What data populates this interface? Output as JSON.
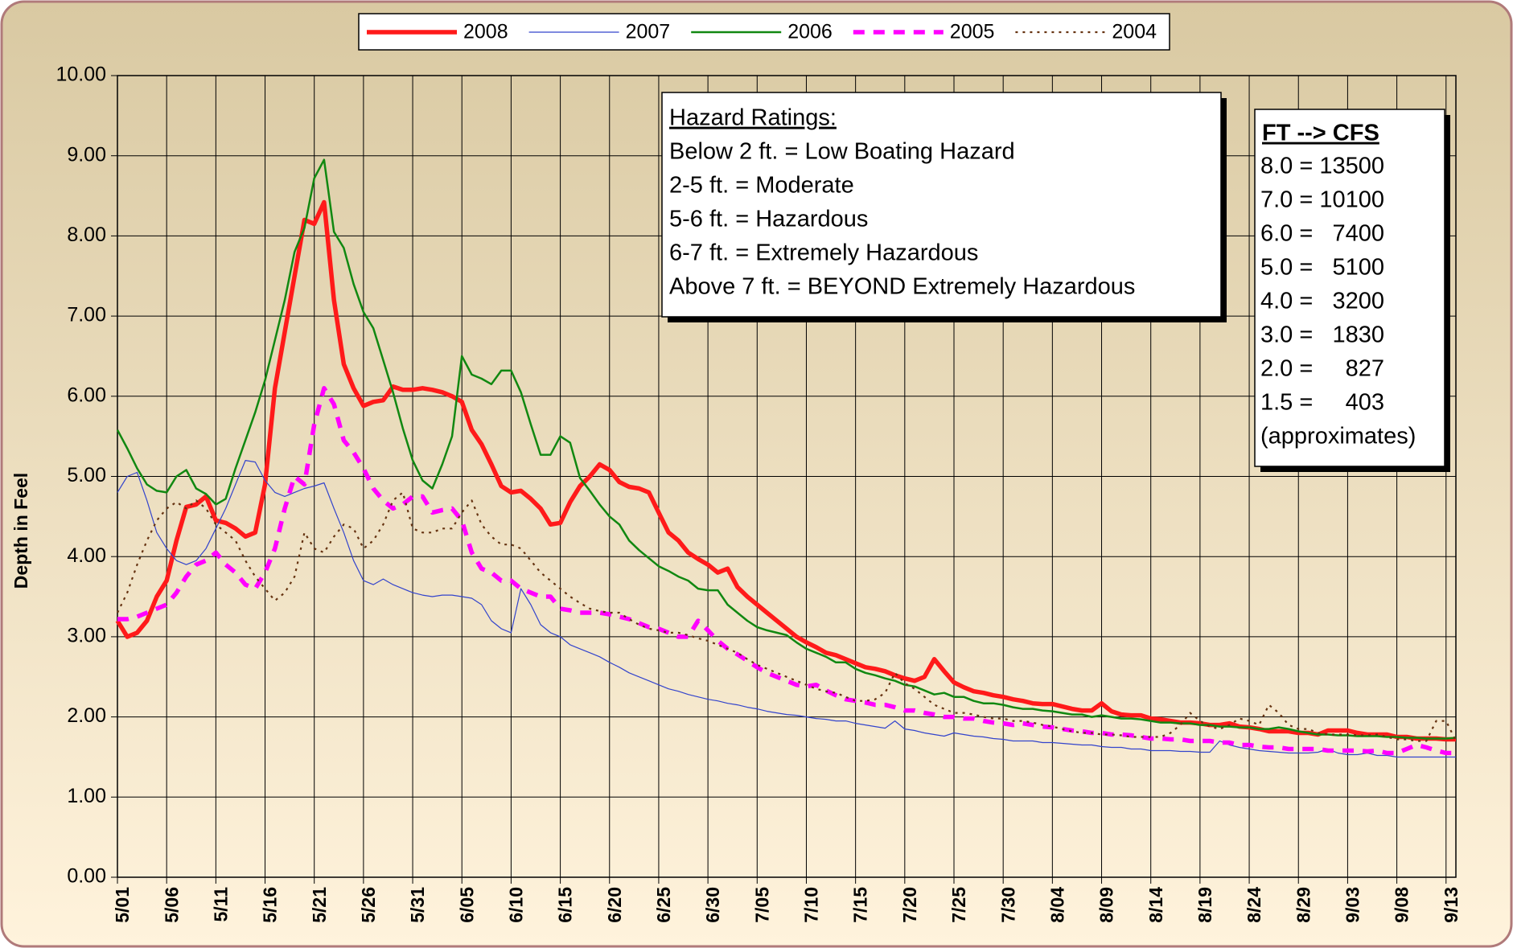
{
  "chart_data": {
    "type": "line",
    "y_label": "Depth in Feel",
    "ylim": [
      0,
      10
    ],
    "yticks": [
      {
        "value": 0,
        "label": "0.00"
      },
      {
        "value": 1,
        "label": "1.00"
      },
      {
        "value": 2,
        "label": "2.00"
      },
      {
        "value": 3,
        "label": "3.00"
      },
      {
        "value": 4,
        "label": "4.00"
      },
      {
        "value": 5,
        "label": "5.00"
      },
      {
        "value": 6,
        "label": "6.00"
      },
      {
        "value": 7,
        "label": "7.00"
      },
      {
        "value": 8,
        "label": "8.00"
      },
      {
        "value": 9,
        "label": "9.00"
      },
      {
        "value": 10,
        "label": "10.00"
      }
    ],
    "grid": true,
    "legend": "top",
    "categories": [
      "5/01",
      null,
      null,
      null,
      null,
      "5/06",
      null,
      null,
      null,
      null,
      "5/11",
      null,
      null,
      null,
      null,
      "5/16",
      null,
      null,
      null,
      null,
      "5/21",
      null,
      null,
      null,
      null,
      "5/26",
      null,
      null,
      null,
      null,
      "5/31",
      null,
      null,
      null,
      null,
      "6/05",
      null,
      null,
      null,
      null,
      "6/10",
      null,
      null,
      null,
      null,
      "6/15",
      null,
      null,
      null,
      null,
      "6/20",
      null,
      null,
      null,
      null,
      "6/25",
      null,
      null,
      null,
      null,
      "6/30",
      null,
      null,
      null,
      null,
      "7/05",
      null,
      null,
      null,
      null,
      "7/10",
      null,
      null,
      null,
      null,
      "7/15",
      null,
      null,
      null,
      null,
      "7/20",
      null,
      null,
      null,
      null,
      "7/25",
      null,
      null,
      null,
      null,
      "7/30",
      null,
      null,
      null,
      null,
      "8/04",
      null,
      null,
      null,
      null,
      "8/09",
      null,
      null,
      null,
      null,
      "8/14",
      null,
      null,
      null,
      null,
      "8/19",
      null,
      null,
      null,
      null,
      "8/24",
      null,
      null,
      null,
      null,
      "8/29",
      null,
      null,
      null,
      null,
      "9/03",
      null,
      null,
      null,
      null,
      "9/08",
      null,
      null,
      null,
      null,
      "9/13",
      null
    ],
    "series": [
      {
        "name": "2008",
        "color": "#ff1a1a",
        "style": "bold",
        "values": [
          3.2,
          3.0,
          3.05,
          3.2,
          3.5,
          3.7,
          4.2,
          4.62,
          4.65,
          4.75,
          4.45,
          4.42,
          4.35,
          4.25,
          4.3,
          4.9,
          6.1,
          6.8,
          7.5,
          8.2,
          8.15,
          8.42,
          7.2,
          6.4,
          6.1,
          5.88,
          5.93,
          5.95,
          6.12,
          6.08,
          6.08,
          6.1,
          6.08,
          6.05,
          6.0,
          5.93,
          5.58,
          5.4,
          5.15,
          4.88,
          4.8,
          4.82,
          4.72,
          4.6,
          4.4,
          4.42,
          4.68,
          4.88,
          5.0,
          5.15,
          5.08,
          4.93,
          4.87,
          4.85,
          4.8,
          4.55,
          4.3,
          4.2,
          4.05,
          3.97,
          3.9,
          3.8,
          3.85,
          3.62,
          3.5,
          3.4,
          3.3,
          3.2,
          3.1,
          3.0,
          2.93,
          2.87,
          2.8,
          2.77,
          2.72,
          2.67,
          2.62,
          2.6,
          2.57,
          2.52,
          2.48,
          2.45,
          2.5,
          2.72,
          2.57,
          2.43,
          2.37,
          2.32,
          2.3,
          2.27,
          2.25,
          2.22,
          2.2,
          2.17,
          2.16,
          2.16,
          2.13,
          2.1,
          2.08,
          2.08,
          2.17,
          2.07,
          2.03,
          2.02,
          2.02,
          1.98,
          1.97,
          1.95,
          1.93,
          1.93,
          1.92,
          1.9,
          1.9,
          1.92,
          1.88,
          1.87,
          1.85,
          1.82,
          1.82,
          1.82,
          1.8,
          1.8,
          1.78,
          1.83,
          1.83,
          1.83,
          1.8,
          1.78,
          1.78,
          1.78,
          1.75,
          1.75,
          1.73,
          1.73,
          1.73,
          1.72,
          1.72
        ]
      },
      {
        "name": "2007",
        "color": "#3344cc",
        "style": "thin",
        "values": [
          4.8,
          5.0,
          5.05,
          4.7,
          4.3,
          4.1,
          3.95,
          3.9,
          3.95,
          4.1,
          4.35,
          4.6,
          4.9,
          5.2,
          5.18,
          4.95,
          4.8,
          4.75,
          4.8,
          4.85,
          4.88,
          4.92,
          4.6,
          4.3,
          3.95,
          3.7,
          3.65,
          3.72,
          3.65,
          3.6,
          3.55,
          3.52,
          3.5,
          3.52,
          3.52,
          3.5,
          3.48,
          3.4,
          3.2,
          3.1,
          3.05,
          3.6,
          3.4,
          3.15,
          3.05,
          3.0,
          2.9,
          2.85,
          2.8,
          2.75,
          2.68,
          2.62,
          2.55,
          2.5,
          2.45,
          2.4,
          2.35,
          2.32,
          2.28,
          2.25,
          2.22,
          2.2,
          2.17,
          2.15,
          2.12,
          2.1,
          2.07,
          2.05,
          2.03,
          2.02,
          2.0,
          1.98,
          1.97,
          1.95,
          1.95,
          1.92,
          1.9,
          1.88,
          1.86,
          1.95,
          1.85,
          1.83,
          1.8,
          1.78,
          1.76,
          1.8,
          1.78,
          1.76,
          1.75,
          1.73,
          1.72,
          1.7,
          1.7,
          1.7,
          1.68,
          1.68,
          1.67,
          1.66,
          1.65,
          1.65,
          1.63,
          1.62,
          1.62,
          1.6,
          1.6,
          1.58,
          1.58,
          1.58,
          1.57,
          1.57,
          1.56,
          1.56,
          1.7,
          1.65,
          1.62,
          1.6,
          1.58,
          1.57,
          1.56,
          1.55,
          1.55,
          1.55,
          1.56,
          1.6,
          1.55,
          1.53,
          1.53,
          1.55,
          1.52,
          1.52,
          1.5,
          1.5,
          1.5,
          1.5,
          1.5,
          1.5,
          1.5
        ]
      },
      {
        "name": "2006",
        "color": "#118811",
        "style": "solid",
        "values": [
          5.58,
          5.35,
          5.1,
          4.9,
          4.82,
          4.8,
          5.0,
          5.08,
          4.85,
          4.78,
          4.65,
          4.72,
          5.1,
          5.45,
          5.8,
          6.2,
          6.7,
          7.2,
          7.8,
          8.1,
          8.72,
          8.95,
          8.05,
          7.85,
          7.4,
          7.05,
          6.85,
          6.45,
          6.05,
          5.6,
          5.2,
          4.95,
          4.85,
          5.15,
          5.5,
          6.5,
          6.27,
          6.22,
          6.15,
          6.32,
          6.32,
          6.05,
          5.65,
          5.27,
          5.27,
          5.5,
          5.42,
          4.98,
          4.82,
          4.65,
          4.5,
          4.4,
          4.2,
          4.08,
          3.98,
          3.88,
          3.82,
          3.75,
          3.7,
          3.6,
          3.58,
          3.58,
          3.4,
          3.3,
          3.2,
          3.12,
          3.08,
          3.05,
          3.02,
          2.93,
          2.85,
          2.8,
          2.75,
          2.68,
          2.68,
          2.6,
          2.55,
          2.52,
          2.48,
          2.45,
          2.4,
          2.38,
          2.33,
          2.28,
          2.3,
          2.25,
          2.25,
          2.2,
          2.17,
          2.17,
          2.15,
          2.12,
          2.1,
          2.1,
          2.08,
          2.07,
          2.05,
          2.03,
          2.03,
          2.0,
          2.02,
          2.0,
          1.98,
          1.98,
          1.97,
          1.95,
          1.93,
          1.93,
          1.92,
          1.92,
          1.9,
          1.9,
          1.88,
          1.88,
          1.87,
          1.87,
          1.85,
          1.85,
          1.87,
          1.85,
          1.82,
          1.8,
          1.78,
          1.78,
          1.77,
          1.77,
          1.76,
          1.76,
          1.76,
          1.75,
          1.75,
          1.74,
          1.74,
          1.73,
          1.73,
          1.73,
          1.74
        ]
      },
      {
        "name": "2005",
        "color": "#ff00ff",
        "style": "dashed",
        "values": [
          3.22,
          3.22,
          3.25,
          3.3,
          3.35,
          3.4,
          3.55,
          3.75,
          3.9,
          3.95,
          4.05,
          3.9,
          3.8,
          3.65,
          3.6,
          3.8,
          4.1,
          4.6,
          5.0,
          4.9,
          5.65,
          6.1,
          5.9,
          5.45,
          5.3,
          5.1,
          4.85,
          4.7,
          4.6,
          4.65,
          4.75,
          4.75,
          4.55,
          4.58,
          4.6,
          4.45,
          4.05,
          3.85,
          3.8,
          3.7,
          3.7,
          3.6,
          3.55,
          3.5,
          3.5,
          3.35,
          3.33,
          3.3,
          3.3,
          3.3,
          3.28,
          3.25,
          3.22,
          3.17,
          3.12,
          3.1,
          3.05,
          3.0,
          3.0,
          3.2,
          3.08,
          2.95,
          2.85,
          2.78,
          2.7,
          2.62,
          2.55,
          2.5,
          2.45,
          2.4,
          2.38,
          2.4,
          2.33,
          2.27,
          2.22,
          2.2,
          2.18,
          2.15,
          2.15,
          2.12,
          2.08,
          2.08,
          2.05,
          2.03,
          2.0,
          2.0,
          1.98,
          1.98,
          1.95,
          1.93,
          1.92,
          1.9,
          1.92,
          1.9,
          1.88,
          1.87,
          1.85,
          1.83,
          1.82,
          1.8,
          1.8,
          1.78,
          1.78,
          1.77,
          1.75,
          1.73,
          1.73,
          1.72,
          1.72,
          1.7,
          1.7,
          1.7,
          1.68,
          1.68,
          1.65,
          1.65,
          1.63,
          1.62,
          1.62,
          1.6,
          1.6,
          1.6,
          1.6,
          1.58,
          1.58,
          1.58,
          1.58,
          1.57,
          1.58,
          1.55,
          1.55,
          1.6,
          1.65,
          1.62,
          1.58,
          1.55,
          1.55
        ]
      },
      {
        "name": "2004",
        "color": "#663311",
        "style": "dotted",
        "values": [
          3.3,
          3.55,
          3.9,
          4.2,
          4.45,
          4.6,
          4.68,
          4.6,
          4.7,
          4.6,
          4.4,
          4.3,
          4.2,
          3.95,
          3.75,
          3.6,
          3.45,
          3.55,
          3.75,
          4.3,
          4.1,
          4.05,
          4.25,
          4.4,
          4.35,
          4.1,
          4.2,
          4.4,
          4.7,
          4.8,
          4.35,
          4.3,
          4.3,
          4.35,
          4.35,
          4.55,
          4.7,
          4.4,
          4.25,
          4.15,
          4.15,
          4.1,
          3.95,
          3.8,
          3.7,
          3.6,
          3.5,
          3.42,
          3.35,
          3.32,
          3.3,
          3.3,
          3.22,
          3.15,
          3.1,
          3.08,
          3.05,
          3.05,
          3.02,
          2.98,
          2.95,
          2.9,
          2.85,
          2.8,
          2.72,
          2.65,
          2.6,
          2.55,
          2.5,
          2.45,
          2.4,
          2.35,
          2.32,
          2.3,
          2.25,
          2.2,
          2.2,
          2.22,
          2.3,
          2.55,
          2.42,
          2.35,
          2.25,
          2.15,
          2.1,
          2.05,
          2.05,
          2.03,
          2.0,
          1.98,
          1.98,
          1.95,
          1.95,
          1.93,
          1.9,
          1.88,
          1.85,
          1.82,
          1.8,
          1.8,
          1.78,
          1.78,
          1.77,
          1.75,
          1.75,
          1.75,
          1.75,
          1.8,
          1.9,
          2.05,
          1.95,
          1.88,
          1.85,
          1.9,
          1.98,
          1.95,
          1.9,
          2.15,
          2.05,
          1.9,
          1.85,
          1.85,
          1.8,
          1.78,
          1.78,
          1.78,
          1.77,
          1.77,
          1.78,
          1.75,
          1.72,
          1.72,
          1.7,
          1.7,
          1.95,
          1.95,
          1.7
        ]
      }
    ],
    "hazard_box": {
      "title": "Hazard Ratings:",
      "lines": [
        "Below 2 ft. = Low Boating Hazard",
        "2-5 ft. = Moderate",
        "5-6 ft. = Hazardous",
        "6-7 ft. = Extremely Hazardous",
        "Above 7 ft. = BEYOND Extremely Hazardous"
      ]
    },
    "cfs_box": {
      "title": "FT --> CFS",
      "lines": [
        "8.0 = 13500",
        "7.0 = 10100",
        "6.0 =   7400",
        "5.0 =   5100",
        "4.0 =   3200",
        "3.0 =   1830",
        "2.0 =     827",
        "1.5 =     403"
      ],
      "note": "(approximates)"
    }
  }
}
